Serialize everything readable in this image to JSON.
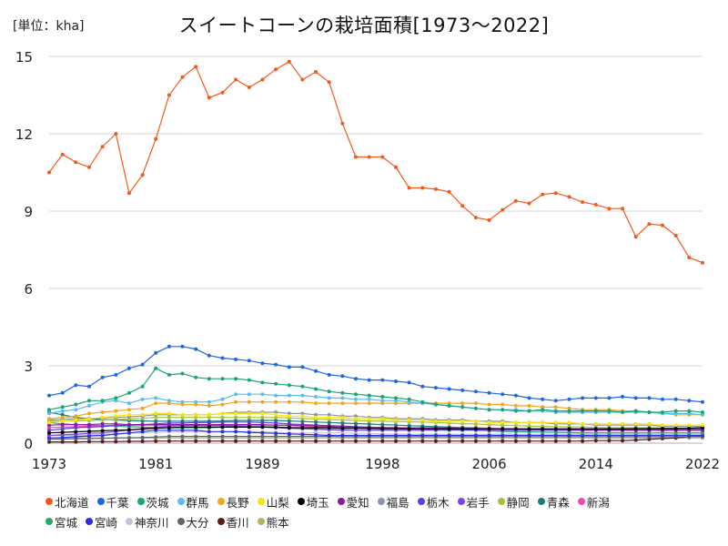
{
  "chart_data": {
    "type": "line",
    "title": "スイートコーンの栽培面積[1973〜2022]",
    "unit_label": "[単位：kha]",
    "xlabel": "",
    "ylabel": "",
    "x_ticks": [
      "1973",
      "1981",
      "1989",
      "1998",
      "2006",
      "2014",
      "2022"
    ],
    "y_ticks": [
      "0",
      "3",
      "6",
      "9",
      "12",
      "15"
    ],
    "xlim": [
      1973,
      2022
    ],
    "ylim": [
      0,
      15
    ],
    "grid": "horizontal",
    "legend_position": "bottom",
    "x": [
      1973,
      1974,
      1975,
      1976,
      1977,
      1978,
      1979,
      1980,
      1981,
      1982,
      1983,
      1984,
      1985,
      1986,
      1987,
      1988,
      1989,
      1990,
      1991,
      1992,
      1993,
      1994,
      1995,
      1996,
      1997,
      1998,
      1999,
      2000,
      2001,
      2002,
      2003,
      2004,
      2005,
      2006,
      2007,
      2008,
      2009,
      2010,
      2011,
      2012,
      2013,
      2014,
      2015,
      2016,
      2017,
      2018,
      2019,
      2020,
      2021,
      2022
    ],
    "series": [
      {
        "name": "北海道",
        "color": "#f05a1e",
        "values": [
          10.5,
          11.2,
          10.9,
          10.7,
          11.5,
          12.0,
          9.7,
          10.4,
          11.8,
          13.5,
          14.2,
          14.6,
          13.4,
          13.6,
          14.1,
          13.8,
          14.1,
          14.5,
          14.8,
          14.1,
          14.4,
          14.0,
          12.4,
          11.1,
          11.1,
          11.1,
          10.7,
          9.9,
          9.9,
          9.85,
          9.75,
          9.2,
          8.75,
          8.65,
          9.05,
          9.4,
          9.3,
          9.65,
          9.7,
          9.55,
          9.35,
          9.25,
          9.1,
          9.1,
          8.0,
          8.5,
          8.45,
          8.05,
          7.2,
          7.0
        ]
      },
      {
        "name": "千葉",
        "color": "#1f67e0",
        "values": [
          1.85,
          1.95,
          2.25,
          2.2,
          2.55,
          2.65,
          2.9,
          3.05,
          3.5,
          3.75,
          3.75,
          3.65,
          3.4,
          3.3,
          3.25,
          3.2,
          3.1,
          3.05,
          2.95,
          2.95,
          2.8,
          2.65,
          2.6,
          2.5,
          2.45,
          2.45,
          2.4,
          2.35,
          2.2,
          2.15,
          2.1,
          2.05,
          2.0,
          1.95,
          1.9,
          1.85,
          1.75,
          1.7,
          1.65,
          1.7,
          1.75,
          1.75,
          1.75,
          1.8,
          1.75,
          1.75,
          1.7,
          1.7,
          1.65,
          1.6
        ]
      },
      {
        "name": "茨城",
        "color": "#17a673",
        "values": [
          1.3,
          1.4,
          1.5,
          1.65,
          1.65,
          1.75,
          1.95,
          2.2,
          2.9,
          2.65,
          2.7,
          2.55,
          2.5,
          2.5,
          2.5,
          2.45,
          2.35,
          2.3,
          2.25,
          2.2,
          2.1,
          2.0,
          1.95,
          1.9,
          1.85,
          1.8,
          1.75,
          1.7,
          1.6,
          1.5,
          1.45,
          1.4,
          1.35,
          1.3,
          1.3,
          1.25,
          1.25,
          1.3,
          1.25,
          1.25,
          1.25,
          1.25,
          1.25,
          1.2,
          1.25,
          1.2,
          1.2,
          1.25,
          1.25,
          1.2
        ]
      },
      {
        "name": "群馬",
        "color": "#5bbcf0",
        "values": [
          1.15,
          1.25,
          1.3,
          1.45,
          1.6,
          1.65,
          1.55,
          1.7,
          1.75,
          1.65,
          1.6,
          1.6,
          1.6,
          1.7,
          1.9,
          1.9,
          1.9,
          1.85,
          1.85,
          1.85,
          1.8,
          1.75,
          1.75,
          1.7,
          1.7,
          1.65,
          1.65,
          1.6,
          1.55,
          1.5,
          1.45,
          1.4,
          1.35,
          1.3,
          1.3,
          1.3,
          1.25,
          1.25,
          1.2,
          1.2,
          1.2,
          1.2,
          1.2,
          1.2,
          1.2,
          1.2,
          1.15,
          1.15,
          1.15,
          1.1
        ]
      },
      {
        "name": "長野",
        "color": "#f2a61a",
        "values": [
          0.95,
          1.0,
          1.05,
          1.15,
          1.2,
          1.25,
          1.3,
          1.35,
          1.55,
          1.55,
          1.5,
          1.5,
          1.45,
          1.5,
          1.6,
          1.6,
          1.6,
          1.6,
          1.6,
          1.6,
          1.55,
          1.55,
          1.55,
          1.55,
          1.55,
          1.55,
          1.55,
          1.55,
          1.55,
          1.55,
          1.55,
          1.55,
          1.55,
          1.5,
          1.5,
          1.45,
          1.45,
          1.4,
          1.4,
          1.35,
          1.3,
          1.3,
          1.3,
          1.25,
          1.25,
          1.2,
          1.15,
          1.1,
          1.1,
          1.1
        ]
      },
      {
        "name": "山梨",
        "color": "#f5e50f",
        "values": [
          0.8,
          0.85,
          0.9,
          0.95,
          1.0,
          1.05,
          1.1,
          1.1,
          1.15,
          1.15,
          1.1,
          1.1,
          1.1,
          1.15,
          1.15,
          1.15,
          1.15,
          1.1,
          1.05,
          1.05,
          1.0,
          1.0,
          1.0,
          0.95,
          0.95,
          0.95,
          0.9,
          0.9,
          0.9,
          0.85,
          0.85,
          0.85,
          0.85,
          0.8,
          0.8,
          0.8,
          0.8,
          0.8,
          0.8,
          0.8,
          0.75,
          0.75,
          0.75,
          0.75,
          0.75,
          0.75,
          0.7,
          0.7,
          0.7,
          0.7
        ]
      },
      {
        "name": "埼玉",
        "color": "#000000",
        "values": [
          0.4,
          0.42,
          0.44,
          0.46,
          0.48,
          0.5,
          0.52,
          0.55,
          0.58,
          0.6,
          0.62,
          0.62,
          0.62,
          0.62,
          0.62,
          0.62,
          0.62,
          0.62,
          0.6,
          0.6,
          0.6,
          0.6,
          0.58,
          0.58,
          0.57,
          0.56,
          0.56,
          0.55,
          0.55,
          0.55,
          0.55,
          0.55,
          0.55,
          0.55,
          0.55,
          0.55,
          0.55,
          0.55,
          0.55,
          0.55,
          0.55,
          0.55,
          0.55,
          0.55,
          0.56,
          0.56,
          0.57,
          0.57,
          0.58,
          0.6
        ]
      },
      {
        "name": "愛知",
        "color": "#8a1a9a",
        "values": [
          0.7,
          0.72,
          0.72,
          0.72,
          0.75,
          0.75,
          0.72,
          0.72,
          0.72,
          0.72,
          0.72,
          0.72,
          0.72,
          0.72,
          0.72,
          0.72,
          0.72,
          0.7,
          0.7,
          0.7,
          0.68,
          0.66,
          0.64,
          0.62,
          0.6,
          0.6,
          0.6,
          0.58,
          0.58,
          0.58,
          0.58,
          0.56,
          0.56,
          0.55,
          0.55,
          0.55,
          0.54,
          0.54,
          0.54,
          0.53,
          0.53,
          0.52,
          0.52,
          0.52,
          0.5,
          0.5,
          0.5,
          0.5,
          0.5,
          0.5
        ]
      },
      {
        "name": "福島",
        "color": "#8c96a6",
        "values": [
          0.9,
          0.92,
          0.94,
          0.96,
          0.98,
          1.0,
          1.02,
          1.05,
          1.1,
          1.1,
          1.1,
          1.1,
          1.1,
          1.15,
          1.2,
          1.2,
          1.2,
          1.2,
          1.15,
          1.15,
          1.1,
          1.1,
          1.05,
          1.05,
          1.0,
          1.0,
          0.95,
          0.95,
          0.95,
          0.9,
          0.9,
          0.9,
          0.85,
          0.85,
          0.85,
          0.8,
          0.8,
          0.8,
          0.75,
          0.75,
          0.75,
          0.7,
          0.7,
          0.7,
          0.7,
          0.7,
          0.65,
          0.65,
          0.65,
          0.65
        ]
      },
      {
        "name": "栃木",
        "color": "#5a3ee0",
        "values": [
          0.5,
          0.55,
          0.6,
          0.62,
          0.65,
          0.68,
          0.7,
          0.72,
          0.75,
          0.78,
          0.78,
          0.8,
          0.8,
          0.82,
          0.82,
          0.82,
          0.8,
          0.78,
          0.75,
          0.72,
          0.7,
          0.68,
          0.66,
          0.64,
          0.62,
          0.6,
          0.58,
          0.56,
          0.55,
          0.54,
          0.53,
          0.52,
          0.51,
          0.5,
          0.5,
          0.5,
          0.5,
          0.5,
          0.5,
          0.5,
          0.5,
          0.5,
          0.5,
          0.5,
          0.5,
          0.5,
          0.5,
          0.5,
          0.5,
          0.5
        ]
      },
      {
        "name": "岩手",
        "color": "#7c45e8",
        "values": [
          0.3,
          0.32,
          0.35,
          0.38,
          0.4,
          0.45,
          0.5,
          0.55,
          0.62,
          0.66,
          0.68,
          0.68,
          0.68,
          0.68,
          0.66,
          0.64,
          0.62,
          0.6,
          0.58,
          0.56,
          0.54,
          0.52,
          0.5,
          0.5,
          0.5,
          0.5,
          0.5,
          0.5,
          0.5,
          0.52,
          0.54,
          0.55,
          0.56,
          0.56,
          0.56,
          0.55,
          0.55,
          0.55,
          0.55,
          0.55,
          0.55,
          0.55,
          0.55,
          0.55,
          0.55,
          0.55,
          0.55,
          0.55,
          0.55,
          0.55
        ]
      },
      {
        "name": "静岡",
        "color": "#a6c23a",
        "values": [
          0.85,
          0.86,
          0.87,
          0.88,
          0.9,
          0.92,
          0.94,
          0.96,
          1.0,
          1.0,
          1.0,
          1.0,
          1.0,
          1.0,
          1.0,
          1.0,
          1.0,
          1.0,
          0.98,
          0.96,
          0.94,
          0.92,
          0.9,
          0.88,
          0.86,
          0.85,
          0.84,
          0.83,
          0.82,
          0.8,
          0.78,
          0.76,
          0.74,
          0.72,
          0.7,
          0.68,
          0.66,
          0.65,
          0.64,
          0.63,
          0.62,
          0.61,
          0.6,
          0.6,
          0.6,
          0.6,
          0.58,
          0.58,
          0.57,
          0.56
        ]
      },
      {
        "name": "青森",
        "color": "#1a7c7c",
        "values": [
          1.2,
          1.1,
          1.0,
          0.95,
          0.92,
          0.9,
          0.88,
          0.86,
          0.85,
          0.85,
          0.85,
          0.85,
          0.85,
          0.86,
          0.88,
          0.88,
          0.88,
          0.88,
          0.86,
          0.84,
          0.82,
          0.8,
          0.78,
          0.76,
          0.74,
          0.72,
          0.7,
          0.68,
          0.66,
          0.64,
          0.62,
          0.6,
          0.58,
          0.56,
          0.55,
          0.54,
          0.53,
          0.52,
          0.51,
          0.5,
          0.5,
          0.5,
          0.5,
          0.5,
          0.5,
          0.5,
          0.5,
          0.5,
          0.5,
          0.5
        ]
      },
      {
        "name": "新潟",
        "color": "#f048b8",
        "values": [
          0.6,
          0.62,
          0.64,
          0.66,
          0.68,
          0.7,
          0.7,
          0.7,
          0.7,
          0.7,
          0.7,
          0.7,
          0.7,
          0.7,
          0.7,
          0.7,
          0.7,
          0.7,
          0.68,
          0.66,
          0.64,
          0.62,
          0.6,
          0.6,
          0.6,
          0.6,
          0.6,
          0.6,
          0.6,
          0.6,
          0.6,
          0.6,
          0.6,
          0.58,
          0.56,
          0.55,
          0.54,
          0.53,
          0.52,
          0.51,
          0.5,
          0.5,
          0.5,
          0.5,
          0.5,
          0.5,
          0.5,
          0.5,
          0.5,
          0.5
        ]
      },
      {
        "name": "宮城",
        "color": "#2aa86a",
        "values": [
          0.8,
          0.75,
          0.72,
          0.7,
          0.68,
          0.66,
          0.64,
          0.62,
          0.6,
          0.6,
          0.6,
          0.6,
          0.6,
          0.62,
          0.64,
          0.64,
          0.64,
          0.62,
          0.6,
          0.58,
          0.56,
          0.54,
          0.52,
          0.5,
          0.5,
          0.5,
          0.5,
          0.5,
          0.5,
          0.5,
          0.5,
          0.5,
          0.5,
          0.48,
          0.46,
          0.45,
          0.44,
          0.43,
          0.42,
          0.41,
          0.4,
          0.4,
          0.4,
          0.4,
          0.4,
          0.4,
          0.4,
          0.4,
          0.4,
          0.4
        ]
      },
      {
        "name": "宮崎",
        "color": "#2c2ce0",
        "values": [
          0.2,
          0.22,
          0.25,
          0.28,
          0.3,
          0.35,
          0.4,
          0.45,
          0.5,
          0.5,
          0.5,
          0.5,
          0.45,
          0.45,
          0.45,
          0.42,
          0.4,
          0.38,
          0.36,
          0.34,
          0.32,
          0.3,
          0.3,
          0.3,
          0.3,
          0.3,
          0.3,
          0.3,
          0.3,
          0.3,
          0.3,
          0.3,
          0.3,
          0.3,
          0.3,
          0.3,
          0.3,
          0.3,
          0.3,
          0.3,
          0.3,
          0.3,
          0.3,
          0.3,
          0.3,
          0.3,
          0.3,
          0.3,
          0.3,
          0.3
        ]
      },
      {
        "name": "神奈川",
        "color": "#c4c4d6",
        "values": [
          0.3,
          0.3,
          0.3,
          0.32,
          0.34,
          0.36,
          0.38,
          0.4,
          0.42,
          0.44,
          0.44,
          0.44,
          0.44,
          0.44,
          0.44,
          0.44,
          0.44,
          0.42,
          0.4,
          0.4,
          0.4,
          0.4,
          0.4,
          0.38,
          0.38,
          0.36,
          0.36,
          0.35,
          0.35,
          0.35,
          0.35,
          0.35,
          0.35,
          0.35,
          0.35,
          0.35,
          0.35,
          0.35,
          0.35,
          0.35,
          0.35,
          0.35,
          0.35,
          0.35,
          0.35,
          0.35,
          0.35,
          0.35,
          0.35,
          0.35
        ]
      },
      {
        "name": "大分",
        "color": "#5e6670",
        "values": [
          0.15,
          0.16,
          0.17,
          0.18,
          0.19,
          0.2,
          0.21,
          0.22,
          0.24,
          0.26,
          0.26,
          0.26,
          0.26,
          0.26,
          0.26,
          0.26,
          0.26,
          0.26,
          0.26,
          0.26,
          0.26,
          0.26,
          0.25,
          0.25,
          0.25,
          0.25,
          0.25,
          0.25,
          0.25,
          0.25,
          0.25,
          0.25,
          0.25,
          0.25,
          0.25,
          0.25,
          0.25,
          0.25,
          0.25,
          0.25,
          0.25,
          0.25,
          0.25,
          0.25,
          0.25,
          0.25,
          0.25,
          0.25,
          0.25,
          0.25
        ]
      },
      {
        "name": "香川",
        "color": "#5a1a1a",
        "values": [
          0.05,
          0.05,
          0.05,
          0.06,
          0.06,
          0.06,
          0.07,
          0.07,
          0.08,
          0.08,
          0.08,
          0.08,
          0.08,
          0.08,
          0.08,
          0.08,
          0.08,
          0.08,
          0.08,
          0.08,
          0.08,
          0.08,
          0.08,
          0.08,
          0.08,
          0.08,
          0.08,
          0.08,
          0.08,
          0.08,
          0.08,
          0.08,
          0.08,
          0.08,
          0.08,
          0.08,
          0.08,
          0.08,
          0.08,
          0.08,
          0.08,
          0.1,
          0.1,
          0.1,
          0.12,
          0.15,
          0.18,
          0.2,
          0.25,
          0.3
        ]
      },
      {
        "name": "熊本",
        "color": "#b8b060",
        "values": [
          0.2,
          0.2,
          0.2,
          0.2,
          0.2,
          0.2,
          0.2,
          0.2,
          0.2,
          0.2,
          0.2,
          0.2,
          0.2,
          0.2,
          0.2,
          0.2,
          0.2,
          0.2,
          0.2,
          0.2,
          0.2,
          0.2,
          0.2,
          0.2,
          0.2,
          0.2,
          0.2,
          0.2,
          0.2,
          0.2,
          0.2,
          0.2,
          0.2,
          0.2,
          0.2,
          0.2,
          0.2,
          0.2,
          0.2,
          0.2,
          0.2,
          0.2,
          0.2,
          0.2,
          0.2,
          0.2,
          0.2,
          0.2,
          0.2,
          0.2
        ]
      }
    ]
  }
}
